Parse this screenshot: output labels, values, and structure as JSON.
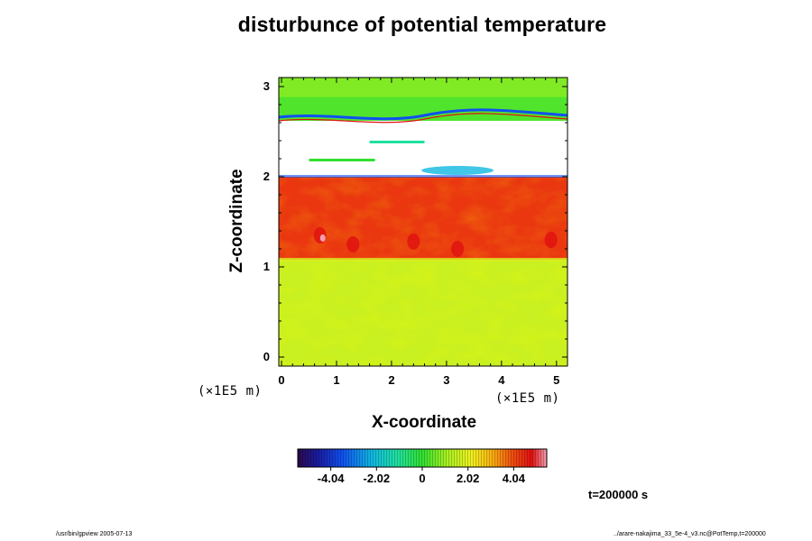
{
  "chart_data": {
    "type": "heatmap",
    "title": "disturbunce of potential temperature",
    "xlabel": "X-coordinate",
    "ylabel": "Z-coordinate",
    "x_unit": "(×1E5 m)",
    "y_unit": "(×1E5 m)",
    "xlim": [
      -0.05,
      5.2
    ],
    "ylim": [
      -0.1,
      3.1
    ],
    "x_ticks": [
      0,
      1,
      2,
      3,
      4,
      5
    ],
    "y_ticks": [
      0,
      1,
      2,
      3
    ],
    "colorbar": {
      "ticks": [
        "-4.04",
        "-2.02",
        "0",
        "2.02",
        "4.04"
      ],
      "range": [
        -5.5,
        5.5
      ]
    },
    "regions": [
      {
        "zmin": -0.1,
        "zmax": 1.08,
        "value": 1.6
      },
      {
        "zmin": 1.08,
        "zmax": 2.0,
        "value": 4.3
      },
      {
        "zmin": 2.0,
        "zmax": 2.62,
        "value": null
      },
      {
        "zmin": 2.62,
        "zmax": 3.1,
        "value": 0.3
      }
    ],
    "colormap": "rainbow",
    "annotation": "t=200000 s"
  },
  "footer": {
    "left": "/usr/bin/gpview 2005-07-13",
    "right": "../arare-nakajima_33_5e-4_v3.nc@PotTemp,t=200000"
  }
}
